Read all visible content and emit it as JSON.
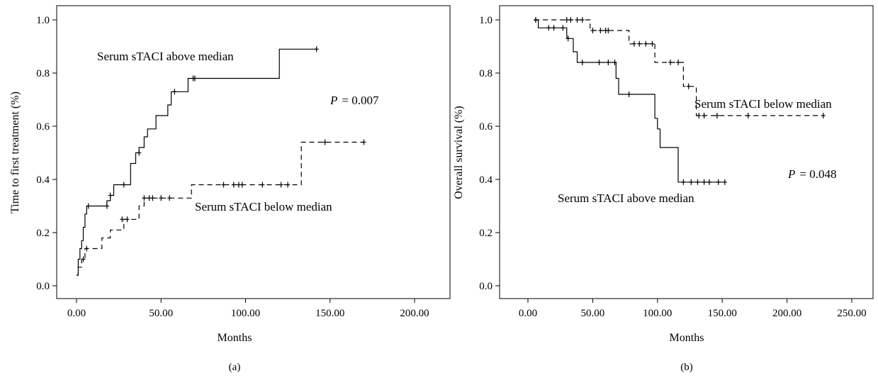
{
  "figure": {
    "panels": [
      "(a)",
      "(b)"
    ]
  },
  "chart_data": [
    {
      "type": "line",
      "caption": "(a)",
      "xlabel": "Months",
      "ylabel": "Time to first treatment (%)",
      "xlim": [
        0,
        200
      ],
      "ylim": [
        0,
        1.0
      ],
      "xticks": [
        "0.00",
        "50.00",
        "100.00",
        "150.00",
        "200.00"
      ],
      "yticks": [
        "0.0",
        "0.2",
        "0.4",
        "0.6",
        "0.8",
        "1.0"
      ],
      "p_value": "= 0.007",
      "p_symbol": "P",
      "series": [
        {
          "label": "Serum sTACI above median",
          "style": "solid",
          "x": [
            0,
            1,
            2,
            3,
            4,
            5,
            6,
            7,
            18,
            20,
            22,
            28,
            32,
            35,
            37,
            40,
            42,
            47,
            54,
            56,
            58,
            66,
            68,
            70,
            120,
            142
          ],
          "y": [
            0.04,
            0.1,
            0.14,
            0.17,
            0.22,
            0.27,
            0.3,
            0.3,
            0.32,
            0.34,
            0.38,
            0.38,
            0.46,
            0.5,
            0.52,
            0.56,
            0.59,
            0.64,
            0.68,
            0.73,
            0.73,
            0.78,
            0.78,
            0.78,
            0.89,
            0.89
          ],
          "censored": [
            [
              7,
              0.3
            ],
            [
              18,
              0.3
            ],
            [
              20,
              0.34
            ],
            [
              28,
              0.38
            ],
            [
              37,
              0.5
            ],
            [
              58,
              0.73
            ],
            [
              69,
              0.78
            ],
            [
              70,
              0.78
            ],
            [
              142,
              0.89
            ]
          ]
        },
        {
          "label": "Serum sTACI below median",
          "style": "dashed",
          "x": [
            0,
            1,
            3,
            5,
            10,
            15,
            20,
            28,
            32,
            37,
            40,
            68,
            133,
            170
          ],
          "y": [
            0.04,
            0.07,
            0.1,
            0.14,
            0.14,
            0.18,
            0.21,
            0.25,
            0.25,
            0.3,
            0.33,
            0.38,
            0.54,
            0.54
          ],
          "censored": [
            [
              4,
              0.1
            ],
            [
              6,
              0.14
            ],
            [
              27,
              0.25
            ],
            [
              30,
              0.25
            ],
            [
              40,
              0.33
            ],
            [
              43,
              0.33
            ],
            [
              45,
              0.33
            ],
            [
              50,
              0.33
            ],
            [
              55,
              0.33
            ],
            [
              87,
              0.38
            ],
            [
              93,
              0.38
            ],
            [
              96,
              0.38
            ],
            [
              98,
              0.38
            ],
            [
              110,
              0.38
            ],
            [
              121,
              0.38
            ],
            [
              125,
              0.38
            ],
            [
              147,
              0.54
            ],
            [
              170,
              0.54
            ]
          ]
        }
      ]
    },
    {
      "type": "line",
      "caption": "(b)",
      "xlabel": "Months",
      "ylabel": "Overall survival (%)",
      "xlim": [
        0,
        250
      ],
      "ylim": [
        0,
        1.0
      ],
      "xticks": [
        "0.00",
        "50.00",
        "100.00",
        "150.00",
        "200.00",
        "250.00"
      ],
      "yticks": [
        "0.0",
        "0.2",
        "0.4",
        "0.6",
        "0.8",
        "1.0"
      ],
      "p_value": "= 0.048",
      "p_symbol": "P",
      "series": [
        {
          "label": "Serum sTACI above median",
          "style": "solid",
          "x": [
            5,
            8,
            30,
            35,
            38,
            40,
            68,
            70,
            98,
            100,
            102,
            116,
            152
          ],
          "y": [
            1.0,
            0.97,
            0.93,
            0.88,
            0.84,
            0.84,
            0.78,
            0.72,
            0.63,
            0.59,
            0.52,
            0.39,
            0.39
          ],
          "censored": [
            [
              6,
              1.0
            ],
            [
              16,
              0.97
            ],
            [
              20,
              0.97
            ],
            [
              27,
              0.97
            ],
            [
              31,
              0.93
            ],
            [
              42,
              0.84
            ],
            [
              55,
              0.84
            ],
            [
              62,
              0.84
            ],
            [
              67,
              0.84
            ],
            [
              78,
              0.72
            ],
            [
              120,
              0.39
            ],
            [
              126,
              0.39
            ],
            [
              131,
              0.39
            ],
            [
              136,
              0.39
            ],
            [
              140,
              0.39
            ],
            [
              147,
              0.39
            ],
            [
              152,
              0.39
            ]
          ]
        },
        {
          "label": "Serum sTACI below median",
          "style": "dashed",
          "x": [
            5,
            48,
            78,
            98,
            120,
            130,
            228
          ],
          "y": [
            1.0,
            0.96,
            0.91,
            0.84,
            0.75,
            0.64,
            0.64
          ],
          "censored": [
            [
              6,
              1.0
            ],
            [
              30,
              1.0
            ],
            [
              33,
              1.0
            ],
            [
              38,
              1.0
            ],
            [
              42,
              1.0
            ],
            [
              50,
              0.96
            ],
            [
              56,
              0.96
            ],
            [
              60,
              0.96
            ],
            [
              62,
              0.96
            ],
            [
              82,
              0.91
            ],
            [
              86,
              0.91
            ],
            [
              91,
              0.91
            ],
            [
              96,
              0.91
            ],
            [
              110,
              0.84
            ],
            [
              116,
              0.84
            ],
            [
              124,
              0.75
            ],
            [
              132,
              0.64
            ],
            [
              136,
              0.64
            ],
            [
              146,
              0.64
            ],
            [
              170,
              0.64
            ],
            [
              228,
              0.64
            ]
          ]
        }
      ]
    }
  ]
}
